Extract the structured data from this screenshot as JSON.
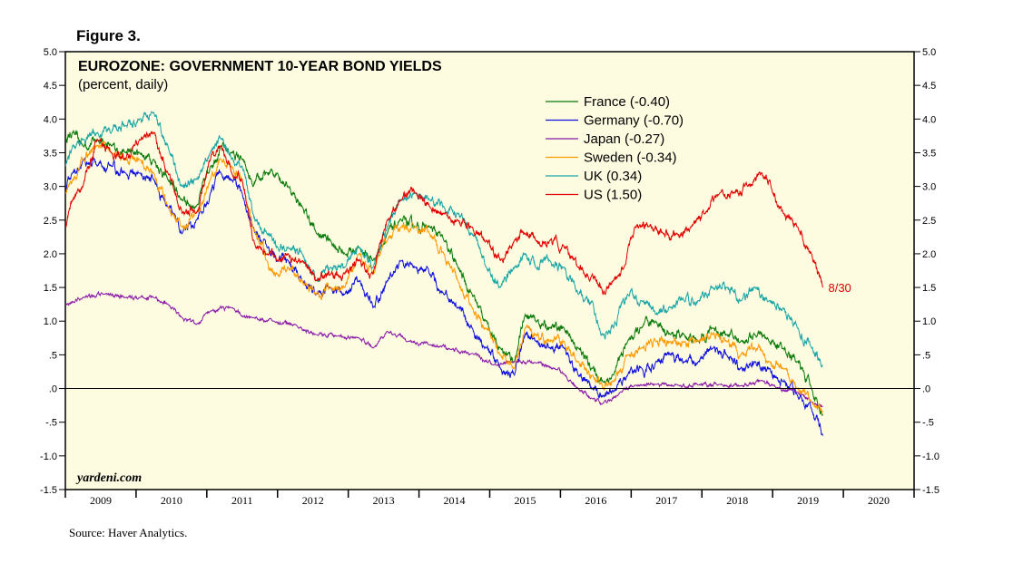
{
  "figure_label": "Figure 3.",
  "watermark": "yardeni.com",
  "source": "Source: Haver Analytics.",
  "colors": {
    "plot_background": "#fdfbe0",
    "France": "#0a7a0a",
    "Germany": "#1010dd",
    "Japan": "#8a1aa8",
    "Sweden": "#ff9900",
    "UK": "#1aa6a6",
    "US": "#e00000"
  },
  "chart_data": {
    "type": "line",
    "title": "EUROZONE: GOVERNMENT 10-YEAR BOND YIELDS",
    "subtitle": "(percent, daily)",
    "xlabel": "",
    "ylabel": "",
    "ylim": [
      -1.5,
      5.0
    ],
    "xlim": [
      2008.95,
      2020.95
    ],
    "grid": false,
    "legend_position": "top-center",
    "y_ticks": [
      {
        "v": 5.0,
        "label": "5.0"
      },
      {
        "v": 4.5,
        "label": "4.5"
      },
      {
        "v": 4.0,
        "label": "4.0"
      },
      {
        "v": 3.5,
        "label": "3.5"
      },
      {
        "v": 3.0,
        "label": "3.0"
      },
      {
        "v": 2.5,
        "label": "2.5"
      },
      {
        "v": 2.0,
        "label": "2.0"
      },
      {
        "v": 1.5,
        "label": "1.5"
      },
      {
        "v": 1.0,
        "label": "1.0"
      },
      {
        "v": 0.5,
        "label": ".5"
      },
      {
        "v": 0.0,
        "label": ".0"
      },
      {
        "v": -0.5,
        "label": "-.5"
      },
      {
        "v": -1.0,
        "label": "-1.0"
      },
      {
        "v": -1.5,
        "label": "-1.5"
      }
    ],
    "x_ticks": [
      "2009",
      "2010",
      "2011",
      "2012",
      "2013",
      "2014",
      "2015",
      "2016",
      "2017",
      "2018",
      "2019",
      "2020"
    ],
    "annotation": {
      "text": "8/30",
      "series": "US"
    },
    "series": [
      {
        "name": "France",
        "legend": "France (-0.40)",
        "color": "#0a7a0a",
        "x": [
          2008.95,
          2009.05,
          2009.2,
          2009.4,
          2009.6,
          2009.8,
          2010.0,
          2010.2,
          2010.4,
          2010.6,
          2010.8,
          2011.0,
          2011.15,
          2011.3,
          2011.45,
          2011.6,
          2011.8,
          2011.95,
          2012.1,
          2012.3,
          2012.5,
          2012.7,
          2012.9,
          2013.1,
          2013.3,
          2013.5,
          2013.7,
          2013.9,
          2014.1,
          2014.3,
          2014.5,
          2014.7,
          2014.9,
          2015.1,
          2015.3,
          2015.45,
          2015.6,
          2015.8,
          2016.0,
          2016.2,
          2016.4,
          2016.55,
          2016.7,
          2016.9,
          2017.1,
          2017.3,
          2017.5,
          2017.7,
          2017.9,
          2018.1,
          2018.3,
          2018.5,
          2018.7,
          2018.9,
          2019.1,
          2019.3,
          2019.5,
          2019.66
        ],
        "y": [
          3.7,
          3.8,
          3.6,
          3.7,
          3.6,
          3.5,
          3.5,
          3.4,
          3.1,
          2.8,
          2.7,
          3.3,
          3.6,
          3.5,
          3.4,
          3.0,
          3.2,
          3.2,
          3.0,
          2.7,
          2.3,
          2.2,
          2.0,
          2.1,
          1.9,
          2.3,
          2.5,
          2.4,
          2.4,
          2.2,
          1.8,
          1.4,
          1.0,
          0.6,
          0.4,
          1.1,
          1.0,
          0.9,
          0.9,
          0.6,
          0.3,
          0.1,
          0.2,
          0.7,
          0.9,
          1.0,
          0.8,
          0.8,
          0.7,
          0.9,
          0.8,
          0.7,
          0.8,
          0.7,
          0.6,
          0.4,
          0.0,
          -0.4
        ]
      },
      {
        "name": "Germany",
        "legend": "Germany (-0.70)",
        "color": "#1010dd",
        "x": [
          2008.95,
          2009.05,
          2009.2,
          2009.4,
          2009.6,
          2009.8,
          2010.0,
          2010.2,
          2010.4,
          2010.6,
          2010.8,
          2011.0,
          2011.15,
          2011.3,
          2011.45,
          2011.6,
          2011.8,
          2011.95,
          2012.1,
          2012.3,
          2012.5,
          2012.7,
          2012.9,
          2013.1,
          2013.3,
          2013.5,
          2013.7,
          2013.9,
          2014.1,
          2014.3,
          2014.5,
          2014.7,
          2014.9,
          2015.1,
          2015.3,
          2015.45,
          2015.6,
          2015.8,
          2016.0,
          2016.2,
          2016.4,
          2016.55,
          2016.7,
          2016.9,
          2017.1,
          2017.3,
          2017.5,
          2017.7,
          2017.9,
          2018.1,
          2018.3,
          2018.5,
          2018.7,
          2018.9,
          2019.1,
          2019.3,
          2019.5,
          2019.66
        ],
        "y": [
          3.0,
          3.2,
          3.4,
          3.3,
          3.3,
          3.2,
          3.2,
          3.1,
          2.7,
          2.3,
          2.5,
          2.9,
          3.2,
          3.1,
          2.9,
          2.4,
          2.1,
          1.9,
          1.9,
          1.6,
          1.4,
          1.5,
          1.4,
          1.6,
          1.2,
          1.6,
          1.9,
          1.8,
          1.7,
          1.4,
          1.2,
          0.9,
          0.6,
          0.3,
          0.2,
          0.8,
          0.7,
          0.6,
          0.6,
          0.2,
          0.0,
          -0.1,
          -0.05,
          0.2,
          0.3,
          0.4,
          0.5,
          0.4,
          0.4,
          0.6,
          0.5,
          0.3,
          0.4,
          0.3,
          0.1,
          -0.1,
          -0.3,
          -0.7
        ]
      },
      {
        "name": "Japan",
        "legend": "Japan (-0.27)",
        "color": "#8a1aa8",
        "x": [
          2008.95,
          2009.2,
          2009.5,
          2009.8,
          2010.0,
          2010.2,
          2010.4,
          2010.6,
          2010.8,
          2011.0,
          2011.3,
          2011.6,
          2011.9,
          2012.2,
          2012.5,
          2012.8,
          2013.1,
          2013.3,
          2013.5,
          2013.8,
          2014.1,
          2014.4,
          2014.7,
          2015.0,
          2015.3,
          2015.6,
          2015.9,
          2016.0,
          2016.2,
          2016.4,
          2016.55,
          2016.8,
          2017.0,
          2017.3,
          2017.6,
          2017.9,
          2018.2,
          2018.5,
          2018.8,
          2019.0,
          2019.3,
          2019.5,
          2019.66
        ],
        "y": [
          1.25,
          1.35,
          1.4,
          1.35,
          1.35,
          1.35,
          1.25,
          1.05,
          0.95,
          1.15,
          1.2,
          1.05,
          1.0,
          0.95,
          0.8,
          0.78,
          0.75,
          0.6,
          0.85,
          0.7,
          0.65,
          0.58,
          0.52,
          0.35,
          0.4,
          0.38,
          0.28,
          0.22,
          0.0,
          -0.15,
          -0.22,
          -0.05,
          0.05,
          0.06,
          0.06,
          0.05,
          0.06,
          0.04,
          0.12,
          0.01,
          -0.05,
          -0.2,
          -0.27
        ]
      },
      {
        "name": "Sweden",
        "legend": "Sweden (-0.34)",
        "color": "#ff9900",
        "x": [
          2008.95,
          2009.05,
          2009.2,
          2009.4,
          2009.6,
          2009.8,
          2010.0,
          2010.2,
          2010.4,
          2010.6,
          2010.8,
          2011.0,
          2011.15,
          2011.3,
          2011.45,
          2011.6,
          2011.8,
          2011.95,
          2012.1,
          2012.3,
          2012.5,
          2012.7,
          2012.9,
          2013.1,
          2013.3,
          2013.5,
          2013.7,
          2013.9,
          2014.1,
          2014.3,
          2014.5,
          2014.7,
          2014.9,
          2015.1,
          2015.3,
          2015.45,
          2015.6,
          2015.8,
          2016.0,
          2016.2,
          2016.4,
          2016.55,
          2016.7,
          2016.9,
          2017.1,
          2017.3,
          2017.5,
          2017.7,
          2017.9,
          2018.1,
          2018.3,
          2018.5,
          2018.7,
          2018.9,
          2019.1,
          2019.3,
          2019.5,
          2019.66
        ],
        "y": [
          2.9,
          3.1,
          3.4,
          3.6,
          3.5,
          3.4,
          3.4,
          3.2,
          2.7,
          2.4,
          2.6,
          3.1,
          3.4,
          3.3,
          3.1,
          2.4,
          1.9,
          1.7,
          1.8,
          1.6,
          1.4,
          1.5,
          1.5,
          2.0,
          1.7,
          2.2,
          2.4,
          2.4,
          2.3,
          2.0,
          1.6,
          1.2,
          0.9,
          0.5,
          0.3,
          0.9,
          0.8,
          0.7,
          0.7,
          0.4,
          0.2,
          0.0,
          0.1,
          0.5,
          0.6,
          0.7,
          0.7,
          0.7,
          0.7,
          0.8,
          0.7,
          0.5,
          0.6,
          0.4,
          0.3,
          0.0,
          -0.2,
          -0.34
        ]
      },
      {
        "name": "UK",
        "legend": "UK (0.34)",
        "color": "#1aa6a6",
        "x": [
          2008.95,
          2009.05,
          2009.2,
          2009.4,
          2009.6,
          2009.8,
          2010.0,
          2010.2,
          2010.4,
          2010.6,
          2010.8,
          2011.0,
          2011.15,
          2011.3,
          2011.45,
          2011.6,
          2011.8,
          2011.95,
          2012.1,
          2012.3,
          2012.5,
          2012.7,
          2012.9,
          2013.1,
          2013.3,
          2013.5,
          2013.7,
          2013.9,
          2014.1,
          2014.3,
          2014.5,
          2014.7,
          2014.9,
          2015.1,
          2015.3,
          2015.45,
          2015.6,
          2015.8,
          2016.0,
          2016.2,
          2016.4,
          2016.55,
          2016.7,
          2016.9,
          2017.1,
          2017.3,
          2017.5,
          2017.7,
          2017.9,
          2018.1,
          2018.3,
          2018.5,
          2018.7,
          2018.9,
          2019.1,
          2019.3,
          2019.5,
          2019.66
        ],
        "y": [
          3.3,
          3.6,
          3.7,
          3.8,
          3.8,
          3.9,
          4.0,
          4.1,
          3.6,
          3.0,
          3.1,
          3.5,
          3.7,
          3.4,
          3.3,
          2.6,
          2.3,
          2.1,
          2.1,
          2.0,
          1.6,
          1.8,
          1.8,
          2.1,
          1.8,
          2.4,
          2.8,
          2.9,
          2.8,
          2.7,
          2.6,
          2.3,
          1.8,
          1.5,
          1.8,
          2.0,
          1.8,
          1.9,
          1.8,
          1.4,
          1.3,
          0.8,
          0.9,
          1.4,
          1.3,
          1.1,
          1.2,
          1.3,
          1.3,
          1.5,
          1.5,
          1.3,
          1.5,
          1.3,
          1.2,
          0.9,
          0.6,
          0.34
        ]
      },
      {
        "name": "US",
        "legend": "US (1.50)",
        "color": "#e00000",
        "x": [
          2008.95,
          2009.05,
          2009.2,
          2009.4,
          2009.6,
          2009.8,
          2010.0,
          2010.2,
          2010.4,
          2010.6,
          2010.8,
          2011.0,
          2011.15,
          2011.3,
          2011.45,
          2011.6,
          2011.8,
          2011.95,
          2012.1,
          2012.3,
          2012.5,
          2012.7,
          2012.9,
          2013.1,
          2013.3,
          2013.5,
          2013.7,
          2013.9,
          2014.1,
          2014.3,
          2014.5,
          2014.7,
          2014.9,
          2015.1,
          2015.3,
          2015.45,
          2015.6,
          2015.8,
          2016.0,
          2016.2,
          2016.4,
          2016.55,
          2016.7,
          2016.85,
          2017.0,
          2017.2,
          2017.4,
          2017.6,
          2017.8,
          2018.0,
          2018.2,
          2018.4,
          2018.6,
          2018.8,
          2018.95,
          2019.1,
          2019.3,
          2019.5,
          2019.66
        ],
        "y": [
          2.4,
          2.8,
          3.0,
          3.7,
          3.5,
          3.4,
          3.7,
          3.8,
          3.2,
          2.6,
          2.6,
          3.4,
          3.6,
          3.2,
          3.1,
          2.2,
          2.0,
          1.9,
          2.0,
          1.9,
          1.6,
          1.7,
          1.7,
          1.9,
          1.7,
          2.5,
          2.8,
          2.9,
          2.7,
          2.6,
          2.5,
          2.4,
          2.2,
          1.9,
          2.2,
          2.3,
          2.2,
          2.2,
          2.1,
          1.8,
          1.7,
          1.4,
          1.6,
          1.8,
          2.4,
          2.4,
          2.3,
          2.3,
          2.4,
          2.6,
          2.9,
          2.9,
          3.0,
          3.2,
          2.9,
          2.6,
          2.4,
          2.0,
          1.5
        ]
      }
    ]
  }
}
